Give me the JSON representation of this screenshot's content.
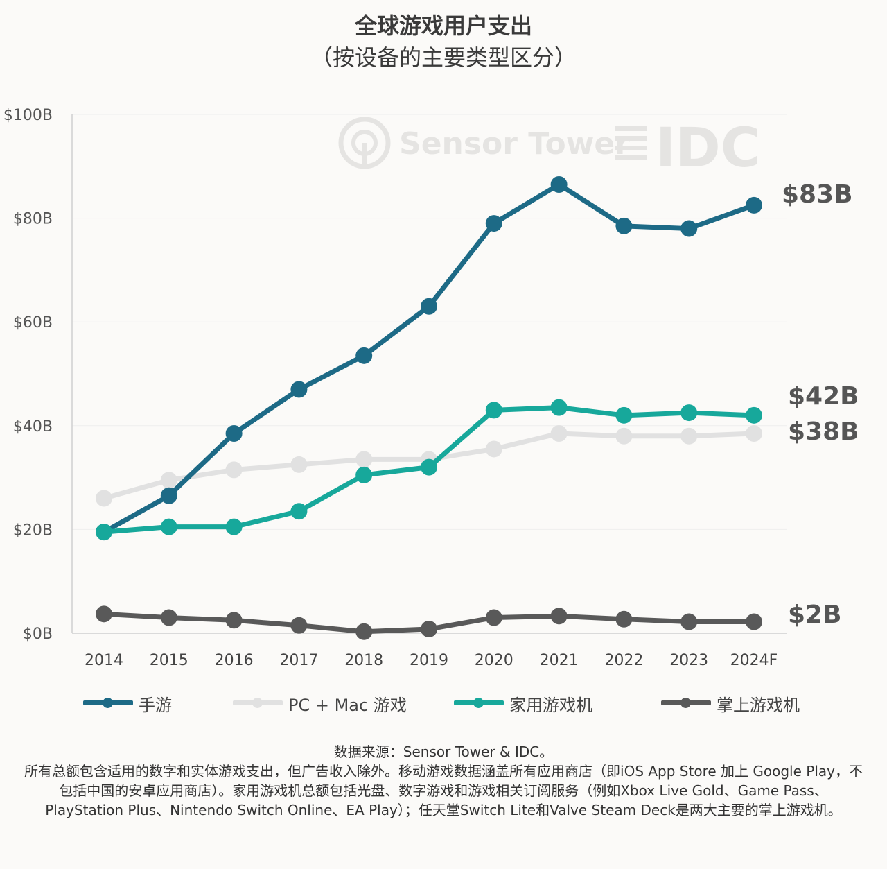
{
  "header": {
    "title": "全球游戏用户支出",
    "subtitle": "（按设备的主要类型区分）"
  },
  "watermark": {
    "sensor_tower": "Sensor Tower",
    "idc": "IDC"
  },
  "chart_data": {
    "type": "line",
    "title": "全球游戏用户支出",
    "subtitle": "（按设备的主要类型区分）",
    "x": [
      "2014",
      "2015",
      "2016",
      "2017",
      "2018",
      "2019",
      "2020",
      "2021",
      "2022",
      "2023",
      "2024F"
    ],
    "ylim": [
      0,
      100
    ],
    "yticks": [
      "$0B",
      "$20B",
      "$40B",
      "$60B",
      "$80B",
      "$100B"
    ],
    "ytick_values": [
      0,
      20,
      40,
      60,
      80,
      100
    ],
    "grid": true,
    "legend_position": "bottom",
    "series": [
      {
        "name": "手游",
        "color": "#1d6a86",
        "values": [
          19.5,
          26.5,
          38.5,
          47,
          53.5,
          63,
          79,
          86.5,
          78.5,
          78,
          82.5
        ],
        "end_label": "$83B"
      },
      {
        "name": "PC + Mac 游戏",
        "color": "#e1e1e1",
        "values": [
          26,
          29.5,
          31.5,
          32.5,
          33.5,
          33.5,
          35.5,
          38.5,
          38,
          38,
          38.5
        ],
        "end_label": "$38B"
      },
      {
        "name": "家用游戏机",
        "color": "#17a89b",
        "values": [
          19.5,
          20.5,
          20.5,
          23.5,
          30.5,
          32,
          43,
          43.5,
          42,
          42.5,
          42
        ],
        "end_label": "$42B"
      },
      {
        "name": "掌上游戏机",
        "color": "#595959",
        "values": [
          3.7,
          3,
          2.5,
          1.5,
          0.3,
          0.8,
          3,
          3.3,
          2.7,
          2.2,
          2.2
        ],
        "end_label": "$2B"
      }
    ]
  },
  "footnote": {
    "line1": "数据来源：Sensor Tower & IDC。",
    "line2": "所有总额包含适用的数字和实体游戏支出，但广告收入除外。移动游戏数据涵盖所有应用商店（即iOS App Store 加上 Google Play，不包括中国的安卓应用商店）。家用游戏机总额包括光盘、数字游戏和游戏相关订阅服务（例如Xbox Live Gold、Game Pass、PlayStation Plus、Nintendo Switch Online、EA Play）；任天堂Switch Lite和Valve Steam Deck是两大主要的掌上游戏机。"
  }
}
